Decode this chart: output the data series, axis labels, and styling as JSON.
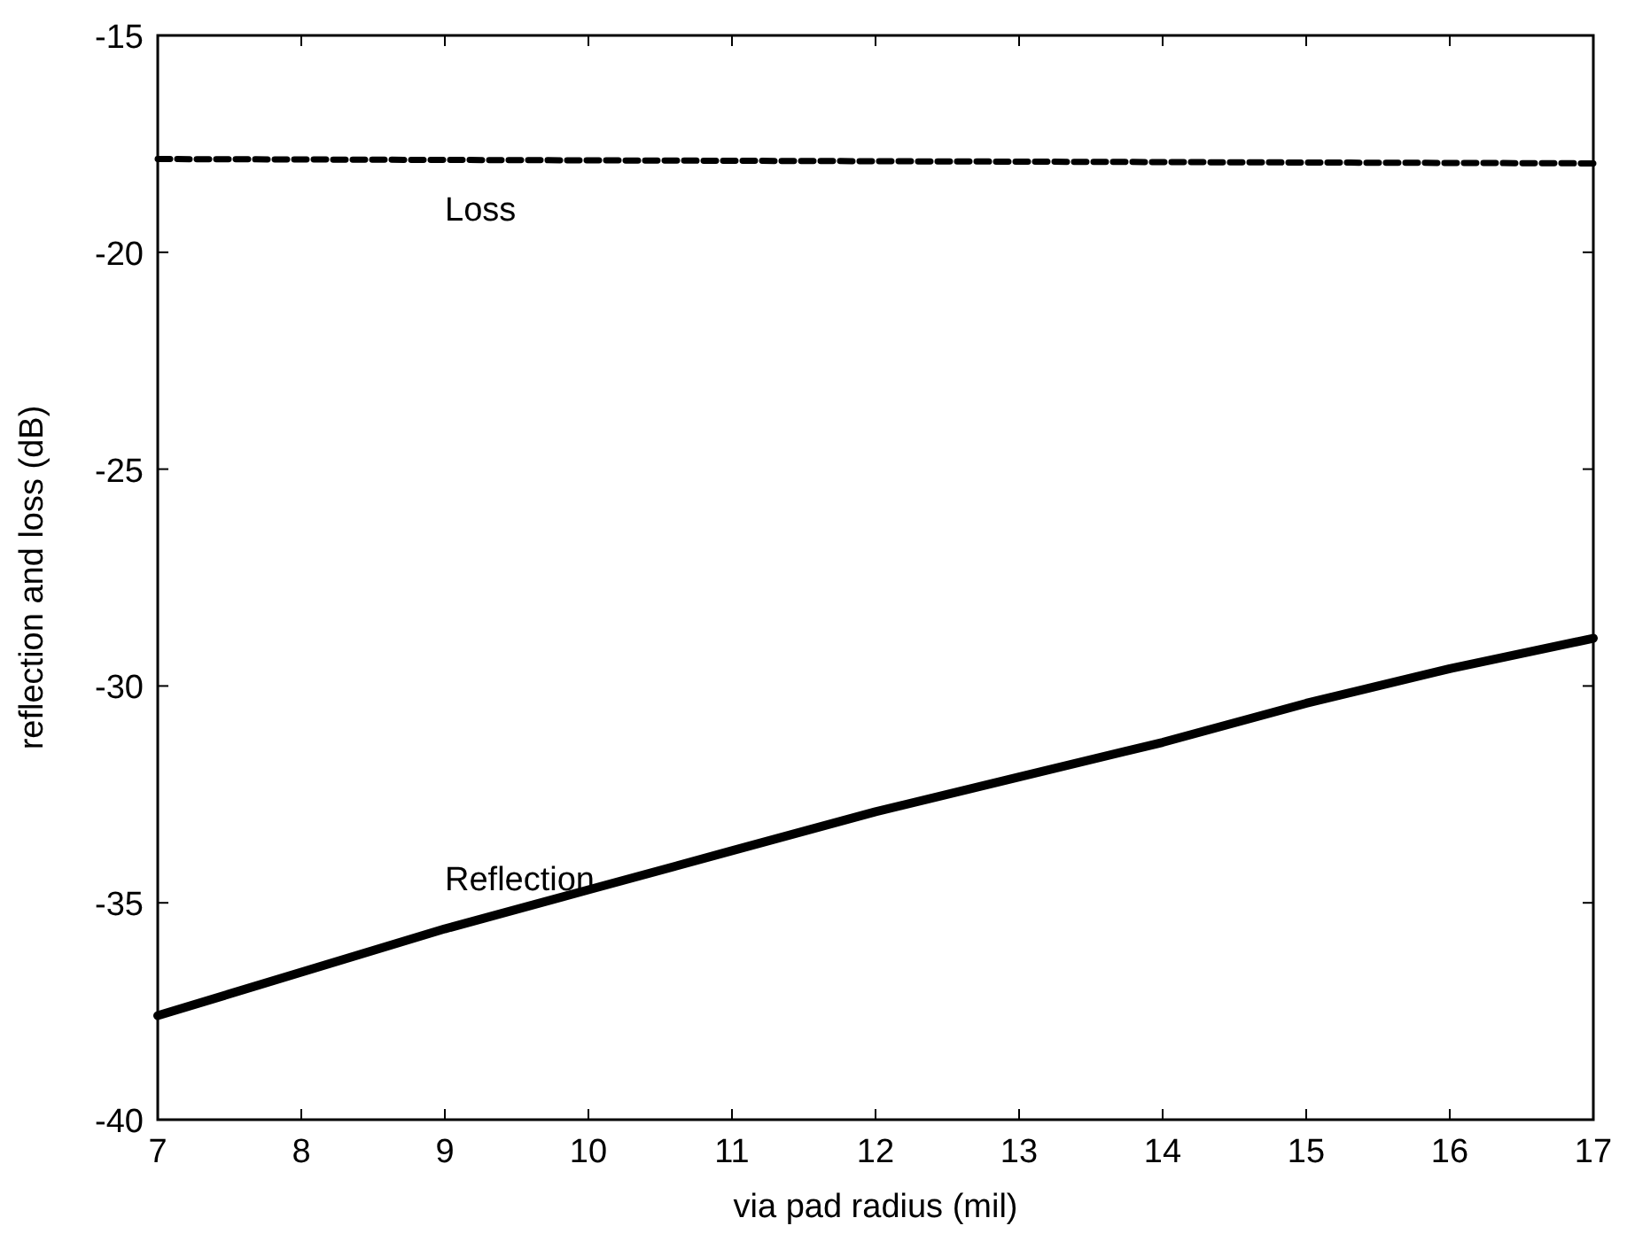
{
  "chart_data": {
    "type": "line",
    "xlabel": "via pad radius (mil)",
    "ylabel": "reflection and loss (dB)",
    "x": [
      7,
      8,
      9,
      10,
      11,
      12,
      13,
      14,
      15,
      16,
      17
    ],
    "series": [
      {
        "name": "Loss",
        "color": "#000000",
        "line_style": "dashed",
        "values": [
          -17.85,
          -17.86,
          -17.87,
          -17.88,
          -17.89,
          -17.9,
          -17.91,
          -17.92,
          -17.93,
          -17.94,
          -17.95
        ]
      },
      {
        "name": "Reflection",
        "color": "#000000",
        "line_style": "solid",
        "values": [
          -37.6,
          -36.6,
          -35.6,
          -34.7,
          -33.8,
          -32.9,
          -32.1,
          -31.3,
          -30.4,
          -29.6,
          -28.9
        ]
      }
    ],
    "xlim": [
      7,
      17
    ],
    "ylim": [
      -40,
      -15
    ],
    "xticks": [
      7,
      8,
      9,
      10,
      11,
      12,
      13,
      14,
      15,
      16,
      17
    ],
    "yticks": [
      -40,
      -35,
      -30,
      -25,
      -20,
      -15
    ],
    "grid": false,
    "legend": false
  }
}
